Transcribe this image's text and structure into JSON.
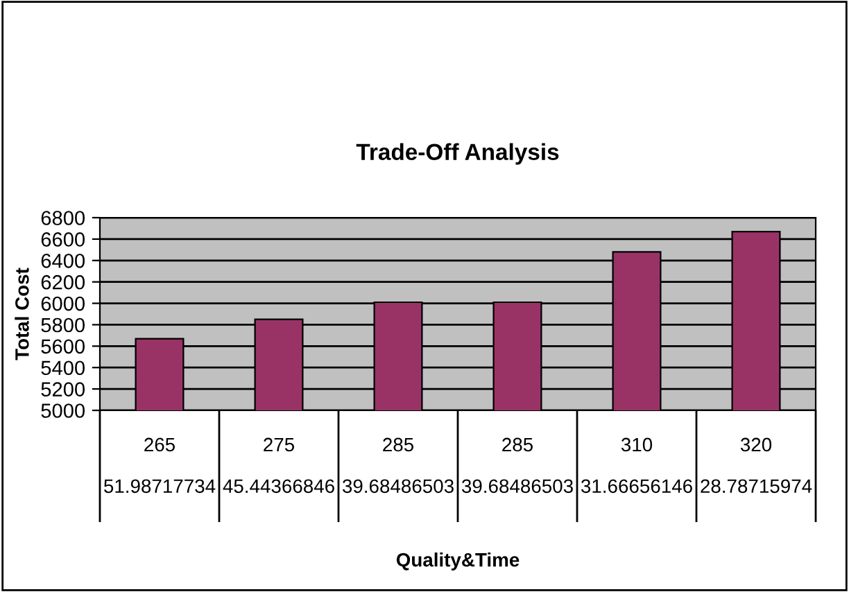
{
  "chart_data": {
    "type": "bar",
    "title": "Trade-Off Analysis",
    "annotations": [
      "Quality&Time"
    ],
    "ylabel": "Total Cost",
    "categories": [
      "265\n51.98717734",
      "275\n45.44366846",
      "285\n39.68486503",
      "285\n39.68486503",
      "310\n31.66656146",
      "320\n28.78715974"
    ],
    "values": [
      5670,
      5850,
      6010,
      6010,
      6480,
      6670
    ],
    "color": "#993366",
    "ylim": [
      5000,
      6800
    ],
    "yticks": [
      5000,
      5200,
      5400,
      5600,
      5800,
      6000,
      6200,
      6400,
      6600,
      6800
    ],
    "grid": "y",
    "legend": false
  }
}
